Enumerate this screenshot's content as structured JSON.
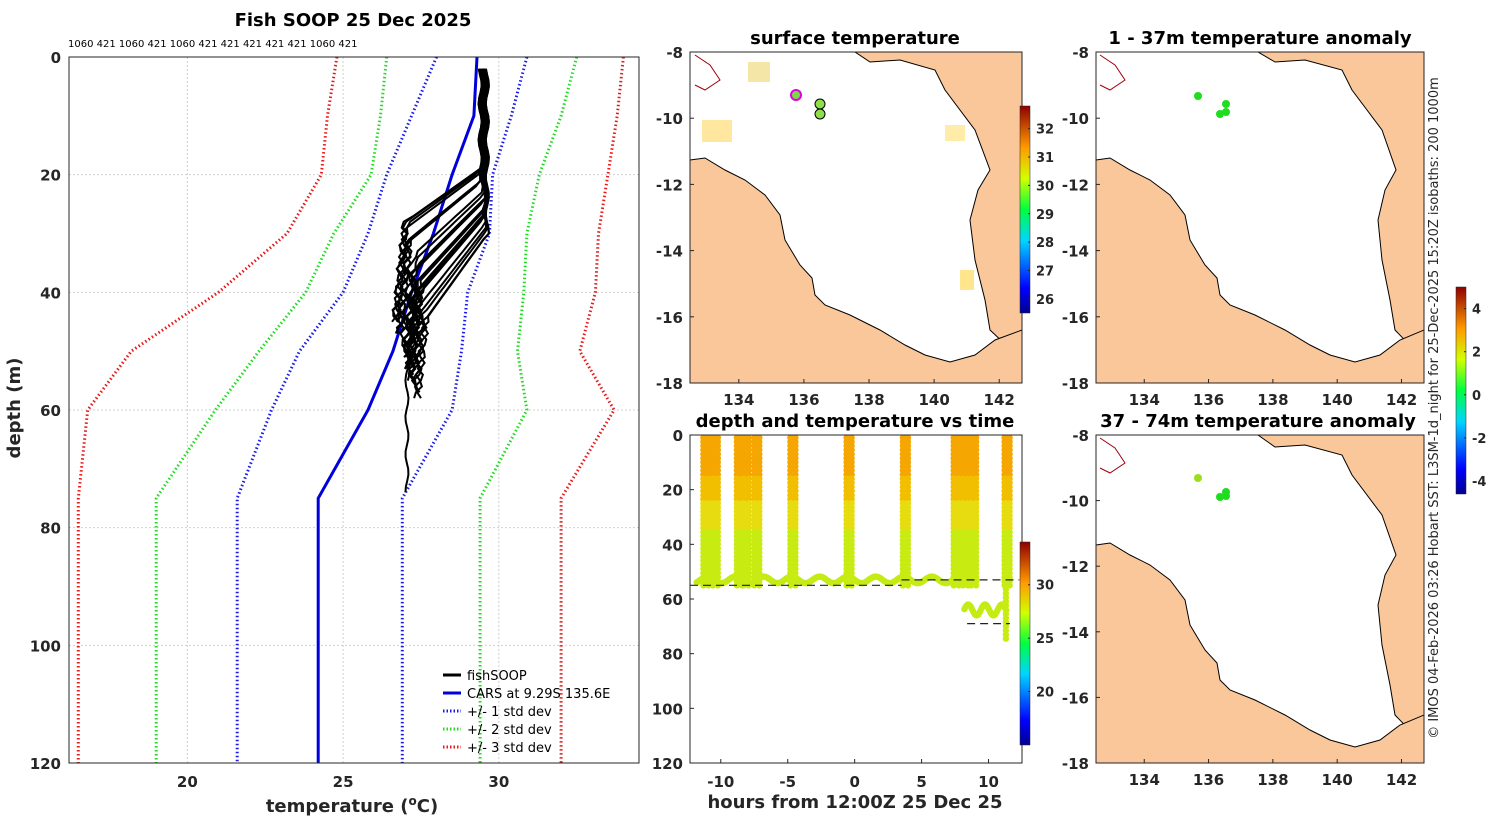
{
  "colors": {
    "fishsoop": "#000000",
    "cars": "#0000dd",
    "std1": "#1a1ae6",
    "std2": "#1fdc1f",
    "std3": "#e61a1a",
    "land": "#f9c79a"
  },
  "chart_data": [
    {
      "type": "line",
      "title": "Fish SOOP 25 Dec 2025",
      "xlabel": "temperature (°C)",
      "ylabel": "depth (m)",
      "xlim": [
        16.2,
        34.5
      ],
      "ylim": [
        0,
        120
      ],
      "xticks": [
        "20",
        "25",
        "30"
      ],
      "yticks": [
        "0",
        "20",
        "40",
        "60",
        "80",
        "100",
        "120"
      ],
      "top_labels": "1060 421 1060 421 1060 421 421 421 421 421 1060 421",
      "depth_levels": [
        0,
        10,
        20,
        30,
        40,
        50,
        60,
        75,
        120
      ],
      "series": [
        {
          "name": "CARS at 9.29S 135.6E",
          "style": "solid",
          "color": "cars",
          "values": [
            29.3,
            29.2,
            28.5,
            27.9,
            27.2,
            26.6,
            25.8,
            24.2,
            24.2
          ]
        },
        {
          "name": "+/- 1 std dev",
          "style": "dotted",
          "color": "std1",
          "values": [
            [
              28.0,
              27.2,
              26.4,
              25.8,
              25.0,
              23.6,
              22.7,
              21.6,
              21.6
            ],
            [
              30.9,
              30.4,
              29.8,
              29.7,
              29.0,
              28.8,
              28.5,
              26.9,
              26.9
            ]
          ]
        },
        {
          "name": "+/- 2 std dev",
          "style": "dotted",
          "color": "std2",
          "values": [
            [
              26.4,
              26.2,
              25.9,
              24.7,
              23.8,
              22.3,
              20.9,
              19.0,
              19.0
            ],
            [
              32.5,
              32.0,
              31.3,
              30.9,
              30.8,
              30.6,
              30.9,
              29.4,
              29.4
            ]
          ]
        },
        {
          "name": "+/- 3 std dev",
          "style": "dotted",
          "color": "std3",
          "values": [
            [
              24.8,
              24.5,
              24.3,
              23.2,
              21.0,
              18.2,
              16.8,
              16.5,
              16.5
            ],
            [
              34.0,
              33.8,
              33.5,
              33.2,
              33.1,
              32.6,
              33.7,
              32.0,
              32.0
            ]
          ]
        },
        {
          "name": "fishSOOP",
          "style": "solid",
          "color": "fishsoop",
          "description_values": "many casts, 29.6 at surface to ~27.0 near 74 m"
        }
      ],
      "legend": [
        "fishSOOP",
        "CARS at 9.29S 135.6E",
        "+/- 1 std dev",
        "+/- 2 std dev",
        "+/- 3 std dev"
      ],
      "legend_position": "bottom-right"
    },
    {
      "type": "heatmap",
      "title": "surface temperature",
      "xticks": [
        "134",
        "136",
        "138",
        "140",
        "142"
      ],
      "yticks": [
        "-8",
        "-10",
        "-12",
        "-14",
        "-16",
        "-18"
      ],
      "colorbar_ticks": [
        "26",
        "27",
        "28",
        "29",
        "30",
        "31",
        "32"
      ]
    },
    {
      "type": "scatter",
      "title": "depth and temperature vs time",
      "xlabel": "hours from 12:00Z 25 Dec 25",
      "xlim": [
        -12.3,
        12.5
      ],
      "ylim": [
        0,
        120
      ],
      "xticks": [
        "-10",
        "-5",
        "0",
        "5",
        "10"
      ],
      "yticks": [
        "0",
        "20",
        "40",
        "60",
        "80",
        "100",
        "120"
      ],
      "colorbar_ticks": [
        "20",
        "25",
        "30"
      ],
      "cast_hours": [
        -11.3,
        -10.6,
        -8.8,
        -8.3,
        -7.5,
        -4.8,
        -0.6,
        3.6,
        7.4,
        8.1,
        8.7,
        11.2
      ],
      "bottom_depth_m": 55
    },
    {
      "type": "scatter",
      "title": "1 - 37m temperature anomaly",
      "xticks": [
        "134",
        "136",
        "138",
        "140",
        "142"
      ],
      "yticks": [
        "-8",
        "-10",
        "-12",
        "-14",
        "-16",
        "-18"
      ]
    },
    {
      "type": "scatter",
      "title": "37 - 74m temperature anomaly",
      "xticks": [
        "134",
        "136",
        "138",
        "140",
        "142"
      ],
      "yticks": [
        "-8",
        "-10",
        "-12",
        "-14",
        "-16",
        "-18"
      ],
      "colorbar_ticks": [
        "-4",
        "-2",
        "0",
        "2",
        "4"
      ]
    }
  ],
  "side_note": "© IMOS 04-Feb-2026 03:26 Hobart SST: L3SM-1d_night for 25-Dec-2025 15:20Z isobaths: 200  1000m"
}
